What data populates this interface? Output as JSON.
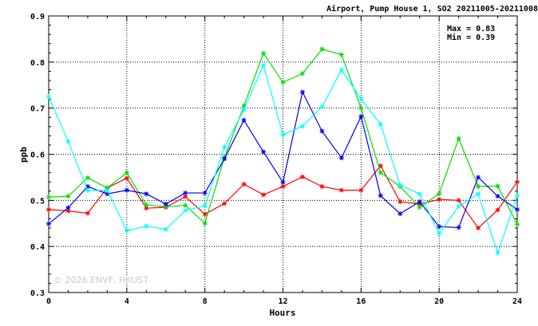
{
  "chart_data": {
    "type": "line",
    "title": "Airport, Pump House 1, SO2 20211005-20211008",
    "xlabel": "Hours",
    "ylabel": "ppb",
    "xlim": [
      0,
      24
    ],
    "ylim": [
      0.3,
      0.9
    ],
    "x_ticks": [
      "0",
      "4",
      "8",
      "12",
      "16",
      "20",
      "24"
    ],
    "y_ticks": [
      "0.3",
      "0.4",
      "0.5",
      "0.6",
      "0.7",
      "0.8",
      "0.9"
    ],
    "grid": true,
    "annotations": {
      "max": "Max = 0.83",
      "min": "Min = 0.39"
    },
    "watermark": "© 2026  ENVF, HKUST",
    "x": [
      0,
      1,
      2,
      3,
      4,
      5,
      6,
      7,
      8,
      9,
      10,
      11,
      12,
      13,
      14,
      15,
      16,
      17,
      18,
      19,
      20,
      21,
      22,
      23,
      24
    ],
    "series": [
      {
        "color": "#ff0000",
        "values": [
          0.48,
          0.477,
          0.472,
          0.527,
          0.548,
          0.483,
          0.485,
          0.508,
          0.47,
          0.493,
          0.535,
          0.512,
          0.53,
          0.551,
          0.53,
          0.522,
          0.522,
          0.575,
          0.497,
          0.492,
          0.502,
          0.5,
          0.44,
          0.479,
          0.54
        ]
      },
      {
        "color": "#00dd00",
        "values": [
          0.507,
          0.509,
          0.549,
          0.527,
          0.56,
          0.49,
          0.486,
          0.489,
          0.45,
          0.593,
          0.705,
          0.819,
          0.756,
          0.775,
          0.828,
          0.816,
          0.7,
          0.56,
          0.53,
          0.485,
          0.514,
          0.634,
          0.53,
          0.531,
          0.448
        ]
      },
      {
        "color": "#0000ee",
        "values": [
          0.449,
          0.484,
          0.53,
          0.514,
          0.522,
          0.514,
          0.492,
          0.516,
          0.516,
          0.59,
          0.674,
          0.605,
          0.539,
          0.735,
          0.65,
          0.592,
          0.682,
          0.51,
          0.471,
          0.497,
          0.443,
          0.441,
          0.55,
          0.509,
          0.48
        ]
      },
      {
        "color": "#00ffff",
        "values": [
          0.725,
          0.628,
          0.521,
          0.522,
          0.434,
          0.444,
          0.437,
          0.478,
          0.488,
          0.615,
          0.697,
          0.793,
          0.642,
          0.661,
          0.703,
          0.783,
          0.72,
          0.665,
          0.533,
          0.514,
          0.428,
          0.487,
          0.514,
          0.386,
          0.51
        ]
      }
    ]
  }
}
